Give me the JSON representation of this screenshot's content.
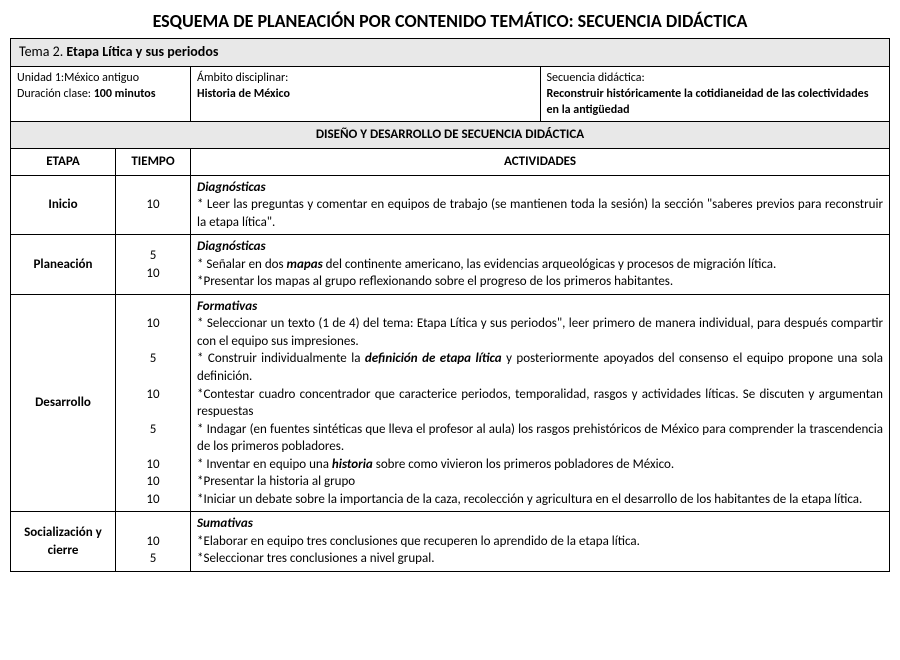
{
  "title": "ESQUEMA DE PLANEACIÓN POR CONTENIDO TEMÁTICO: SECUENCIA DIDÁCTICA",
  "tema": {
    "label": "Tema 2. ",
    "value": "Etapa Lítica y sus periodos"
  },
  "meta": {
    "unidad_label": "Unidad 1:",
    "unidad_value": "México antiguo",
    "duracion_label": "Duración clase: ",
    "duracion_value": "100 minutos",
    "ambito_label": "Ámbito disciplinar:",
    "ambito_value": "Historia de México",
    "secuencia_label": "Secuencia didáctica:",
    "secuencia_value": "Reconstruir históricamente la cotidianeidad de las colectividades en la antigüedad"
  },
  "design_header": "DISEÑO Y DESARROLLO DE SECUENCIA DIDÁCTICA",
  "cols": {
    "etapa": "ETAPA",
    "tiempo": "TIEMPO",
    "actividades": "ACTIVIDADES"
  },
  "rows": {
    "inicio": {
      "etapa": "Inicio",
      "tiempo": "10",
      "head": "Diagnósticas",
      "l1": "* Leer las preguntas y comentar en equipos de trabajo (se mantienen toda la sesión) la sección \"saberes previos para reconstruir la etapa lítica\"."
    },
    "planeacion": {
      "etapa": "Planeación",
      "t1": "5",
      "t2": "10",
      "head": "Diagnósticas",
      "l1a": "* Señalar en dos ",
      "l1b": "mapas",
      "l1c": " del continente americano, las evidencias arqueológicas y procesos de migración lítica.",
      "l2": "*Presentar los  mapas al grupo reflexionando sobre el progreso de los primeros habitantes."
    },
    "desarrollo": {
      "etapa": "Desarrollo",
      "t1": "10",
      "t2": "5",
      "t3": "10",
      "t4": "5",
      "t5": "10",
      "t6": "10",
      "t7": "10",
      "head": "Formativas",
      "l1": "* Seleccionar un texto (1 de 4) del tema: Etapa  Lítica y sus periodos\", leer primero de manera individual, para después compartir con el equipo  sus impresiones.",
      "l2a": "* Construir individualmente la ",
      "l2b": "definición de etapa lítica",
      "l2c": " y posteriormente apoyados del consenso el equipo propone una sola definición.",
      "l3": "*Contestar cuadro concentrador que caracterice periodos, temporalidad, rasgos y actividades líticas. Se discuten y argumentan respuestas",
      "l4": "* Indagar (en fuentes sintéticas que lleva el profesor al aula) los rasgos prehistóricos de México  para comprender la trascendencia de los primeros pobladores.",
      "l5a": "* Inventar en equipo una ",
      "l5b": "historia",
      "l5c": " sobre como vivieron los primeros pobladores de México.",
      "l6": "*Presentar la historia al grupo",
      "l7": "*Iniciar un debate sobre la importancia de la caza, recolección y agricultura en el desarrollo de los habitantes de la etapa lítica."
    },
    "cierre": {
      "etapa": "Socialización y cierre",
      "t1": "10",
      "t2": "5",
      "head": "Sumativas",
      "l1": "*Elaborar en equipo tres conclusiones que recuperen lo aprendido de la etapa lítica.",
      "l2": "*Seleccionar tres conclusiones a nivel grupal."
    }
  }
}
